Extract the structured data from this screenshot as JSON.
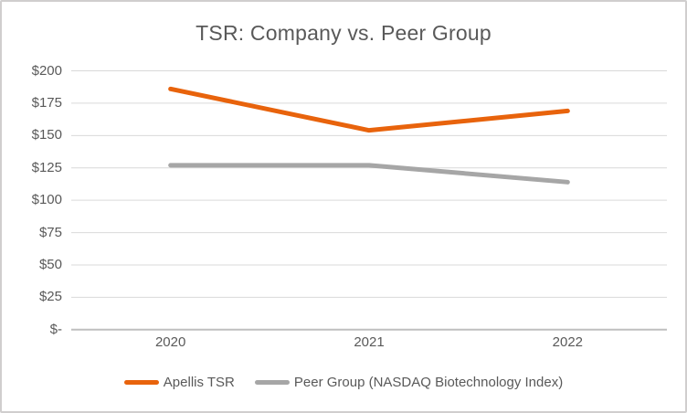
{
  "window": {
    "background": "#FFFFFF",
    "frame_border_color": "#D0CECE"
  },
  "chart_data": {
    "type": "line",
    "title": "TSR: Company vs. Peer Group",
    "categories": [
      "2020",
      "2021",
      "2022"
    ],
    "series": [
      {
        "name": "Apellis TSR",
        "values": [
          186,
          154,
          169
        ],
        "color": "#E8630C"
      },
      {
        "name": "Peer Group (NASDAQ Biotechnology Index)",
        "values": [
          127,
          127,
          114
        ],
        "color": "#A6A6A6"
      }
    ],
    "xlabel": "",
    "ylabel": "",
    "ylim": [
      0,
      200
    ],
    "y_tick_step": 25,
    "y_tick_labels": [
      "$-",
      "$25",
      "$50",
      "$75",
      "$100",
      "$125",
      "$150",
      "$175",
      "$200"
    ],
    "grid": true,
    "gridline_color": "#D9D9D9",
    "axis_line_color": "#BFBFBF",
    "text_color": "#595959",
    "line_width": 5,
    "legend_position": "bottom"
  }
}
